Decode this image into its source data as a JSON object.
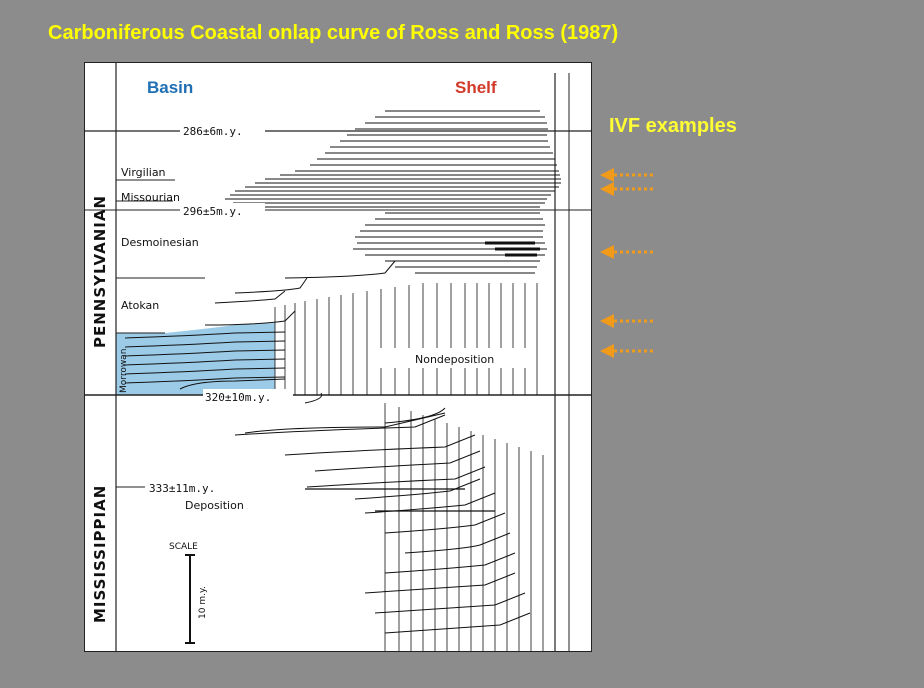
{
  "slide": {
    "title": "Carboniferous Coastal onlap curve of Ross and Ross (1987)",
    "ivf_label": "IVF examples"
  },
  "figure": {
    "basin_label": "Basin",
    "shelf_label": "Shelf",
    "periods": [
      "PENNSYLVANIAN",
      "MISSISSIPPIAN"
    ],
    "stages": [
      "Virgilian",
      "Missourian",
      "Desmoinesian",
      "Atokan",
      "Morrowan"
    ],
    "ages": [
      "286±6m.y.",
      "296±5m.y.",
      "320±10m.y.",
      "333±11m.y."
    ],
    "nondeposition_label": "Nondeposition",
    "deposition_label": "Deposition",
    "scale_label": "SCALE",
    "scale_value": "10 m.y."
  },
  "colors": {
    "background": "#8c8c8c",
    "title": "#ffff00",
    "basin_label": "#1f6fb4",
    "shelf_label": "#d23a2a",
    "morrowan_fill": "#9ccbe8",
    "arrow": "#f29a1a"
  }
}
